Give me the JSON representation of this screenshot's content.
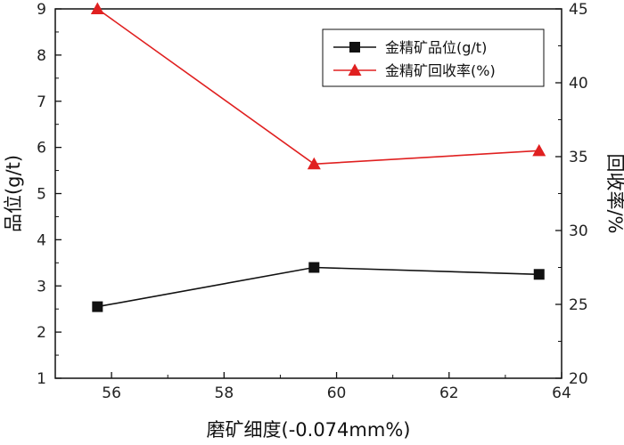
{
  "chart_data": {
    "type": "line",
    "title": "",
    "xlabel": "磨矿细度(-0.074mm%)",
    "ylabel_left": "品位(g/t)",
    "ylabel_right": "回收率/%",
    "xlim": [
      55,
      64
    ],
    "ylim_left": [
      1,
      9
    ],
    "ylim_right": [
      20,
      45
    ],
    "x_ticks": [
      56,
      58,
      60,
      62,
      64
    ],
    "y_ticks_left": [
      1,
      2,
      3,
      4,
      5,
      6,
      7,
      8,
      9
    ],
    "y_ticks_right": [
      20,
      25,
      30,
      35,
      40,
      45
    ],
    "grid": false,
    "legend_position": "top-right",
    "series": [
      {
        "name": "金精矿品位(g/t)",
        "axis": "left",
        "marker": "square",
        "color": "#111111",
        "x": [
          55.75,
          59.6,
          63.6
        ],
        "values": [
          2.55,
          3.4,
          3.25
        ]
      },
      {
        "name": "金精矿回收率(%)",
        "axis": "right",
        "marker": "triangle",
        "color": "#e02020",
        "x": [
          55.75,
          59.6,
          63.6
        ],
        "values": [
          45.0,
          34.5,
          35.4
        ]
      }
    ]
  }
}
